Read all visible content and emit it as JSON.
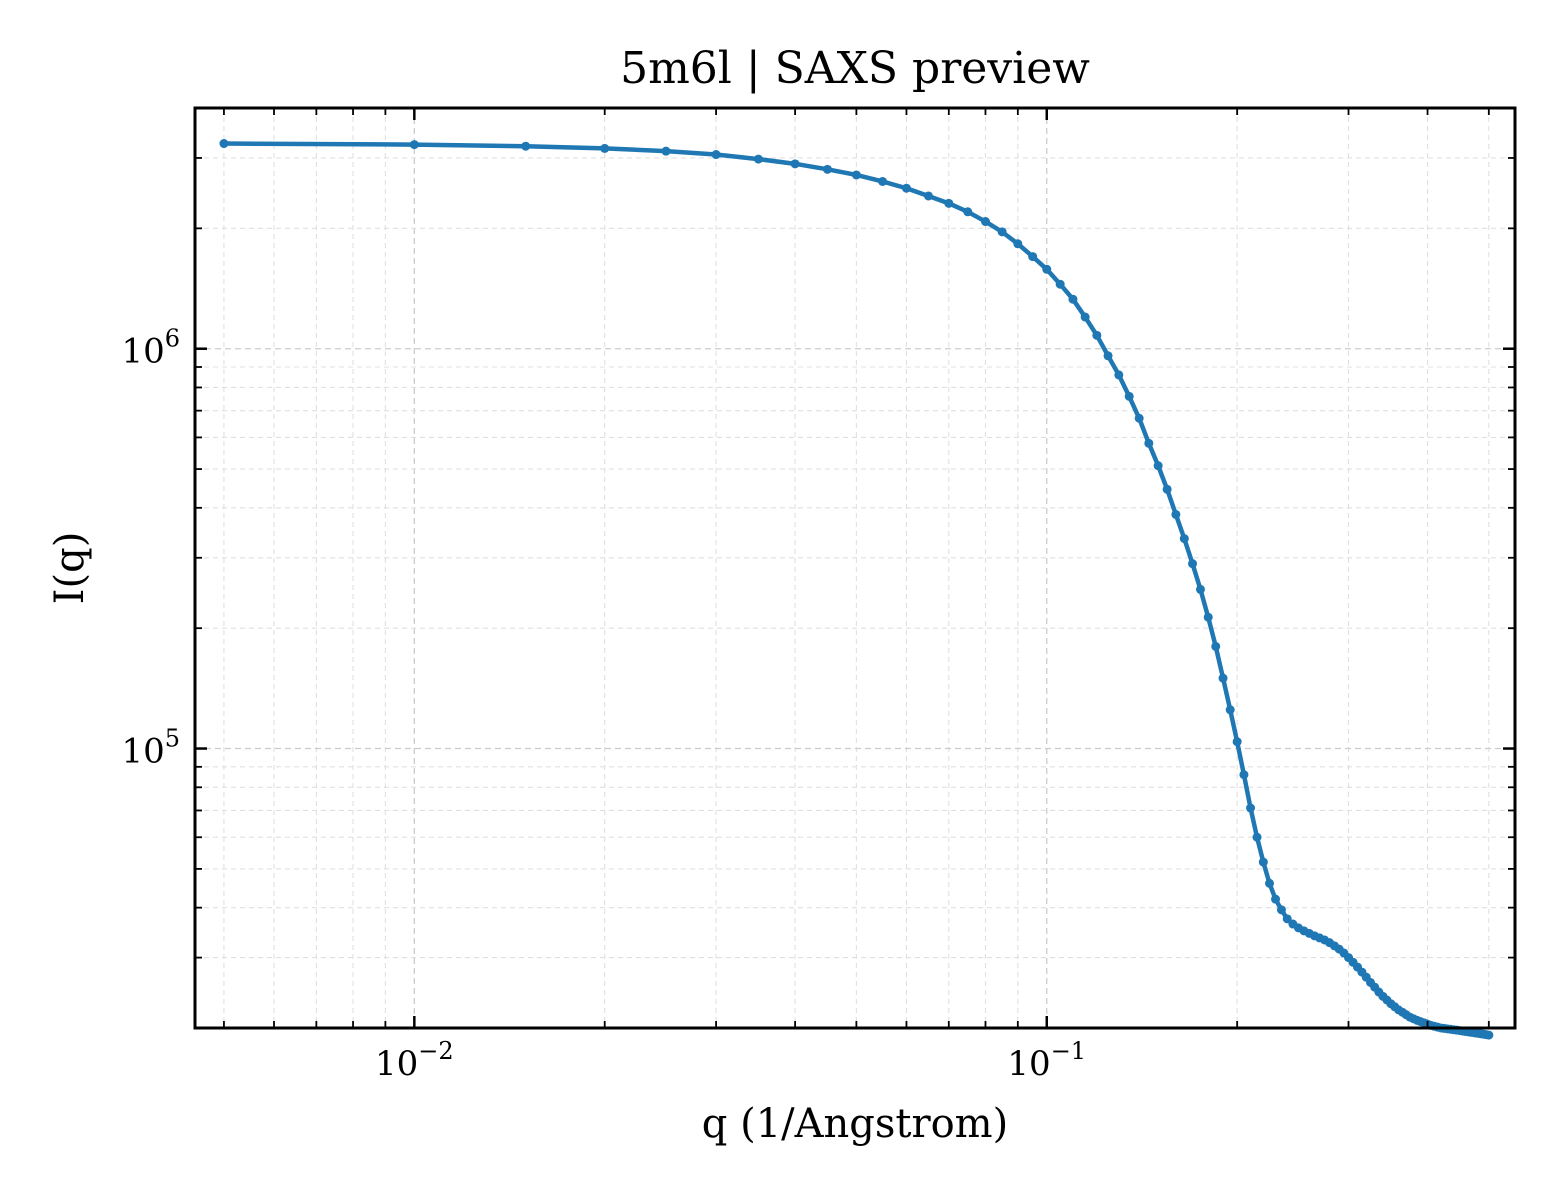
{
  "chart_data": {
    "type": "line",
    "title": "5m6l | SAXS preview",
    "xlabel": "q (1/Angstrom)",
    "ylabel": "I(q)",
    "xscale": "log",
    "yscale": "log",
    "xlim": [
      0.0045,
      0.55
    ],
    "ylim": [
      20000,
      4000000
    ],
    "grid": true,
    "x_ticks": [
      {
        "value": 0.01,
        "base": "10",
        "exp": "−2"
      },
      {
        "value": 0.1,
        "base": "10",
        "exp": "−1"
      }
    ],
    "y_ticks": [
      {
        "value": 100000,
        "base": "10",
        "exp": "5"
      },
      {
        "value": 1000000,
        "base": "10",
        "exp": "6"
      }
    ],
    "series": [
      {
        "color": "#1f77b4",
        "x": [
          0.005,
          0.01,
          0.015,
          0.02,
          0.025,
          0.03,
          0.035,
          0.04,
          0.045,
          0.05,
          0.055,
          0.06,
          0.065,
          0.07,
          0.075,
          0.08,
          0.085,
          0.09,
          0.095,
          0.1,
          0.105,
          0.11,
          0.115,
          0.12,
          0.125,
          0.13,
          0.135,
          0.14,
          0.145,
          0.15,
          0.155,
          0.16,
          0.165,
          0.17,
          0.175,
          0.18,
          0.185,
          0.19,
          0.195,
          0.2,
          0.205,
          0.21,
          0.215,
          0.22,
          0.225,
          0.23,
          0.235,
          0.24,
          0.245,
          0.25,
          0.255,
          0.26,
          0.265,
          0.27,
          0.275,
          0.28,
          0.285,
          0.29,
          0.295,
          0.3,
          0.305,
          0.31,
          0.315,
          0.32,
          0.325,
          0.33,
          0.335,
          0.34,
          0.345,
          0.35,
          0.355,
          0.36,
          0.365,
          0.37,
          0.375,
          0.38,
          0.385,
          0.39,
          0.395,
          0.4,
          0.405,
          0.41,
          0.415,
          0.42,
          0.425,
          0.43,
          0.435,
          0.44,
          0.445,
          0.45,
          0.455,
          0.46,
          0.465,
          0.47,
          0.475,
          0.48,
          0.485,
          0.49,
          0.495,
          0.5
        ],
        "y": [
          3260000,
          3240000,
          3210000,
          3170000,
          3120000,
          3060000,
          2980000,
          2900000,
          2810000,
          2720000,
          2620000,
          2520000,
          2410000,
          2310000,
          2200000,
          2080000,
          1960000,
          1830000,
          1700000,
          1580000,
          1450000,
          1330000,
          1200000,
          1080000,
          960000,
          860000,
          760000,
          670000,
          580000,
          510000,
          445000,
          385000,
          335000,
          290000,
          250000,
          213000,
          180000,
          150000,
          125000,
          104000,
          86000,
          71000,
          60000,
          52000,
          46000,
          42000,
          39500,
          37500,
          36400,
          35600,
          35000,
          34500,
          34000,
          33600,
          33200,
          32700,
          32100,
          31500,
          30800,
          30000,
          29200,
          28400,
          27600,
          26800,
          26000,
          25300,
          24600,
          24000,
          23500,
          23000,
          22600,
          22200,
          21900,
          21600,
          21300,
          21100,
          20900,
          20750,
          20600,
          20450,
          20300,
          20200,
          20100,
          20000,
          19950,
          19900,
          19850,
          19800,
          19750,
          19700,
          19650,
          19600,
          19550,
          19500,
          19450,
          19400,
          19350,
          19300,
          19250,
          19200
        ]
      }
    ]
  }
}
